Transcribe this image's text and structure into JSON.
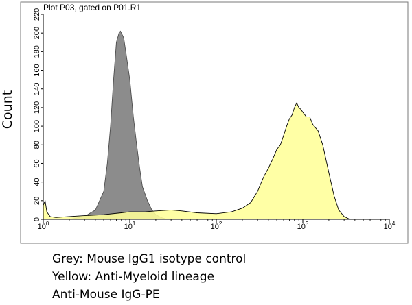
{
  "chart_data": {
    "type": "area",
    "title": "Plot P03, gated on P01.R1",
    "xlabel": "",
    "ylabel": "Count",
    "xscale": "log",
    "xlim": [
      1,
      10000
    ],
    "ylim": [
      0,
      220
    ],
    "grid": false,
    "x_ticks": [
      {
        "base": "10",
        "exp": "0"
      },
      {
        "base": "10",
        "exp": "1"
      },
      {
        "base": "10",
        "exp": "2"
      },
      {
        "base": "10",
        "exp": "3"
      },
      {
        "base": "10",
        "exp": "4"
      }
    ],
    "y_ticks": [
      "0",
      "20",
      "40",
      "60",
      "80",
      "100",
      "120",
      "140",
      "160",
      "180",
      "200",
      "220"
    ],
    "series": [
      {
        "color": "#8c8c8c",
        "outline": "#4d4d4d",
        "x": [
          1.0,
          2.0,
          3.0,
          4.0,
          5.0,
          5.5,
          6.0,
          6.5,
          7.0,
          7.5,
          7.8,
          8.0,
          8.5,
          9.0,
          10.0,
          11.0,
          12.0,
          13.0,
          14.0,
          16.0,
          18.0,
          20.0,
          23.0,
          27.0
        ],
        "y": [
          0,
          0,
          3,
          10,
          30,
          60,
          100,
          150,
          190,
          200,
          202,
          200,
          195,
          180,
          150,
          110,
          80,
          55,
          35,
          20,
          10,
          5,
          2,
          0
        ]
      },
      {
        "color": "#ffff99",
        "outline": "#000000",
        "x": [
          1.0,
          1.05,
          1.1,
          1.2,
          1.4,
          2.0,
          3.0,
          5.0,
          8.0,
          10.0,
          15.0,
          20.0,
          30.0,
          40.0,
          60.0,
          100.0,
          150.0,
          200.0,
          250.0,
          300.0,
          350.0,
          400.0,
          450.0,
          500.0,
          550.0,
          600.0,
          650.0,
          700.0,
          750.0,
          800.0,
          850.0,
          900.0,
          950.0,
          1000.0,
          1100.0,
          1200.0,
          1300.0,
          1500.0,
          1700.0,
          2000.0,
          2300.0,
          2600.0,
          3000.0,
          3500.0
        ],
        "y": [
          15,
          20,
          8,
          3,
          2,
          3,
          4,
          5,
          7,
          8,
          8,
          9,
          10,
          9,
          7,
          6,
          8,
          12,
          18,
          30,
          45,
          55,
          65,
          75,
          80,
          90,
          100,
          108,
          112,
          120,
          125,
          120,
          118,
          115,
          110,
          110,
          102,
          95,
          80,
          50,
          25,
          10,
          3,
          0
        ]
      }
    ]
  },
  "legend_lines": [
    "Grey: Mouse IgG1 isotype control",
    "Yellow: Anti-Myeloid lineage",
    "Anti-Mouse IgG-PE"
  ]
}
